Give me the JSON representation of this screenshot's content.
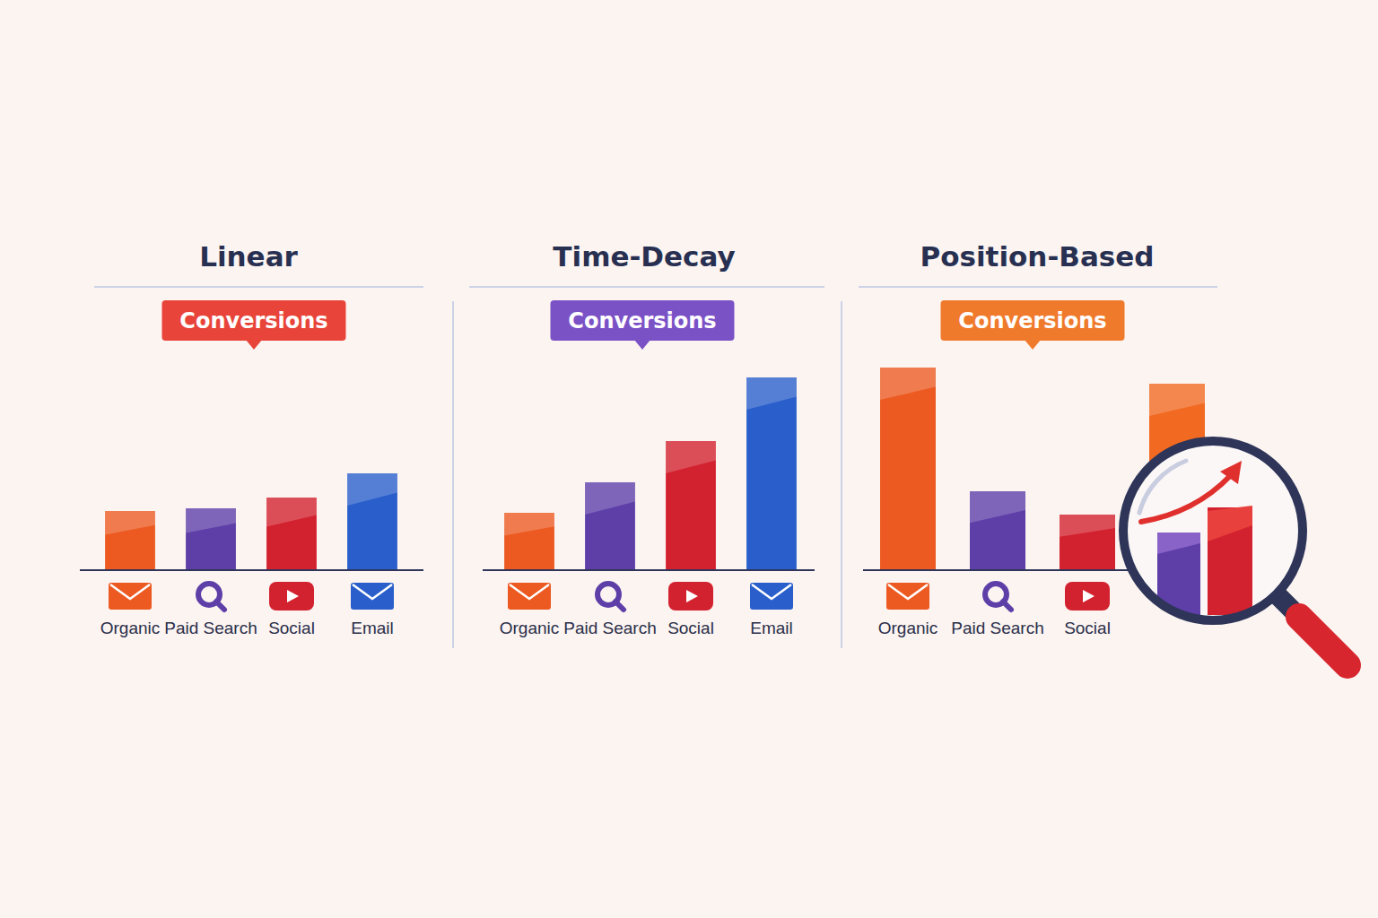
{
  "chart_data": [
    {
      "type": "bar",
      "title": "Linear",
      "annotation": "Conversions",
      "categories": [
        "Organic",
        "Paid Search",
        "Social",
        "Email"
      ],
      "values": [
        66,
        69,
        81,
        108
      ],
      "colors": [
        "#ec5a22",
        "#5e3fa8",
        "#d3222f",
        "#2a5fcb"
      ],
      "ylim": [
        0,
        250
      ],
      "tick_labels": "x"
    },
    {
      "type": "bar",
      "title": "Time-Decay",
      "annotation": "Conversions",
      "categories": [
        "Organic",
        "Paid Search",
        "Social",
        "Email"
      ],
      "values": [
        64,
        98,
        144,
        215
      ],
      "colors": [
        "#ec5a22",
        "#5e3fa8",
        "#d3222f",
        "#2a5fcb"
      ],
      "ylim": [
        0,
        250
      ],
      "tick_labels": "x"
    },
    {
      "type": "bar",
      "title": "Position-Based",
      "annotation": "Conversions",
      "categories": [
        "Organic",
        "Paid Search",
        "Social",
        null
      ],
      "values": [
        226,
        88,
        62,
        208
      ],
      "colors": [
        "#ec5a22",
        "#5e3fa8",
        "#d3222f",
        "#f26a22"
      ],
      "ylim": [
        0,
        250
      ],
      "tick_labels": "x"
    }
  ]
}
